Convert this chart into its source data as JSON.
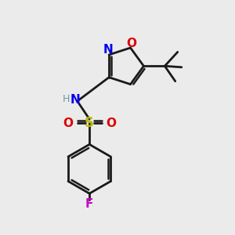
{
  "background_color": "#ebebeb",
  "atom_colors": {
    "C": "#1a1a1a",
    "N": "#0000ee",
    "O": "#dd0000",
    "S": "#bbbb00",
    "F": "#cc00cc",
    "H": "#6a9a9a"
  },
  "figsize": [
    3.0,
    3.0
  ],
  "dpi": 100,
  "bond_lw": 2.0,
  "inner_lw": 1.8
}
